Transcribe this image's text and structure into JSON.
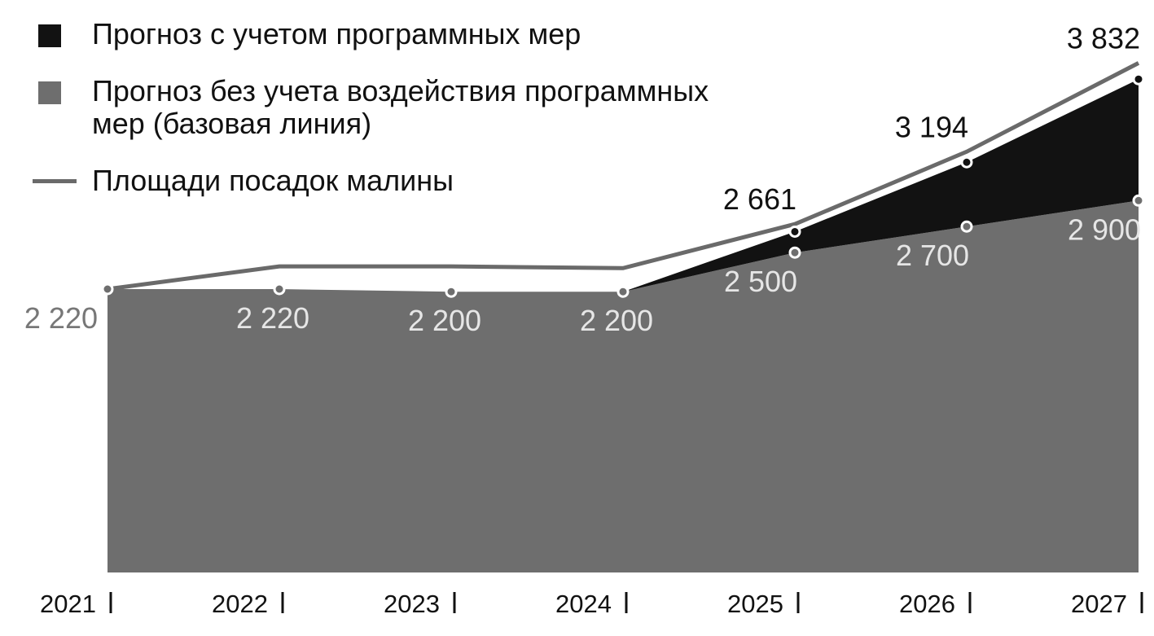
{
  "chart_data": {
    "type": "area",
    "categories": [
      "2021",
      "2022",
      "2023",
      "2024",
      "2025",
      "2026",
      "2027"
    ],
    "series": [
      {
        "name": "Прогноз с учетом программных мер",
        "color": "#121212",
        "values": [
          2220,
          2220,
          2200,
          2200,
          2661,
          3194,
          3832
        ],
        "value_labels": [
          null,
          null,
          null,
          null,
          "2 661",
          "3 194",
          "3 832"
        ]
      },
      {
        "name": "Прогноз без учета воздействия программных мер (базовая линия)",
        "color": "#6e6e6e",
        "values": [
          2220,
          2220,
          2200,
          2200,
          2500,
          2700,
          2900
        ],
        "value_labels": [
          "2 220",
          "2 220",
          "2 200",
          "2 200",
          "2 500",
          "2 700",
          "2 900"
        ]
      },
      {
        "name": "Площади посадок малины",
        "color": "#6a6a6a",
        "type": "line",
        "values": [
          2220,
          2394,
          2394,
          2381,
          2719,
          3275,
          3956
        ]
      }
    ],
    "ylim": [
      0,
      4440
    ]
  }
}
